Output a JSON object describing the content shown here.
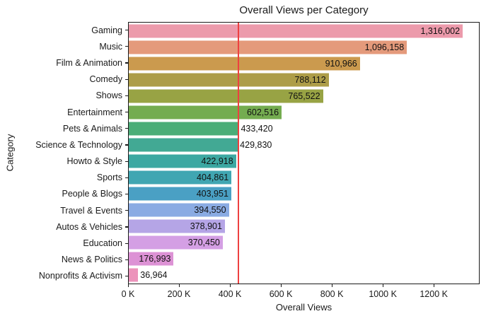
{
  "chart_data": {
    "type": "bar",
    "orientation": "horizontal",
    "title": "Overall Views per Category",
    "xlabel": "Overall Views",
    "ylabel": "Category",
    "categories": [
      "Gaming",
      "Music",
      "Film & Animation",
      "Comedy",
      "Shows",
      "Entertainment",
      "Pets & Animals",
      "Science & Technology",
      "Howto & Style",
      "Sports",
      "People & Blogs",
      "Travel & Events",
      "Autos & Vehicles",
      "Education",
      "News & Politics",
      "Nonprofits & Activism"
    ],
    "values": [
      1316002,
      1096158,
      910966,
      788112,
      765522,
      602516,
      433420,
      429830,
      422918,
      404861,
      403951,
      394550,
      378901,
      370450,
      176993,
      36964
    ],
    "value_labels": [
      "1,316,002",
      "1,096,158",
      "910,966",
      "788,112",
      "765,522",
      "602,516",
      "433,420",
      "429,830",
      "422,918",
      "404,861",
      "403,951",
      "394,550",
      "378,901",
      "370,450",
      "176,993",
      "36,964"
    ],
    "label_placement": [
      "inside",
      "inside",
      "inside",
      "inside",
      "inside",
      "inside",
      "outside",
      "outside",
      "inside",
      "inside",
      "inside",
      "inside",
      "inside",
      "inside",
      "inside",
      "outside"
    ],
    "bar_colors": [
      "#ec9aab",
      "#e49a7b",
      "#cb9a4e",
      "#ad9d48",
      "#98a344",
      "#74ac50",
      "#4bad78",
      "#42a994",
      "#3ca8a2",
      "#40a6b2",
      "#4aa0c4",
      "#8aabe3",
      "#b5a5e6",
      "#d49fe4",
      "#dd92d5",
      "#ec93bb"
    ],
    "xlim": [
      0,
      1380000
    ],
    "x_ticks": [
      {
        "value": 0,
        "label": "0 K"
      },
      {
        "value": 200000,
        "label": "200 K"
      },
      {
        "value": 400000,
        "label": "400 K"
      },
      {
        "value": 600000,
        "label": "600 K"
      },
      {
        "value": 800000,
        "label": "800 K"
      },
      {
        "value": 1000000,
        "label": "1000 K"
      },
      {
        "value": 1200000,
        "label": "1200 K"
      }
    ],
    "reference_line": {
      "value": 430000,
      "color": "#ee4040",
      "style": "solid"
    },
    "grid": false,
    "legend": false,
    "text_color": "#1a1a1a"
  }
}
